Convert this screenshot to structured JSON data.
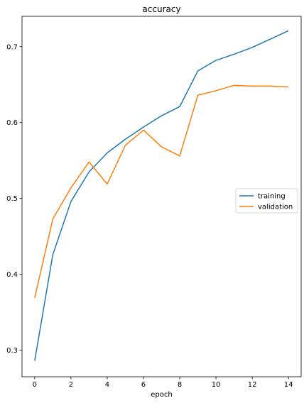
{
  "chart_data": {
    "type": "line",
    "title": "accuracy",
    "xlabel": "epoch",
    "ylabel": "",
    "x": [
      0,
      1,
      2,
      3,
      4,
      5,
      6,
      7,
      8,
      9,
      10,
      11,
      12,
      13,
      14
    ],
    "xlim": [
      -0.7,
      14.7
    ],
    "ylim": [
      0.265,
      0.74
    ],
    "xticks": [
      0,
      2,
      4,
      6,
      8,
      10,
      12,
      14
    ],
    "yticks": [
      0.3,
      0.4,
      0.5,
      0.6,
      0.7
    ],
    "grid": false,
    "legend": "center-right",
    "series": [
      {
        "name": "training",
        "color": "#1f77b4",
        "values": [
          0.286,
          0.426,
          0.496,
          0.535,
          0.56,
          0.578,
          0.594,
          0.609,
          0.621,
          0.668,
          0.682,
          0.69,
          0.699,
          0.71,
          0.721
        ]
      },
      {
        "name": "validation",
        "color": "#ff7f0e",
        "values": [
          0.369,
          0.473,
          0.514,
          0.548,
          0.519,
          0.57,
          0.59,
          0.568,
          0.556,
          0.636,
          0.642,
          0.649,
          0.648,
          0.648,
          0.647
        ]
      }
    ]
  }
}
